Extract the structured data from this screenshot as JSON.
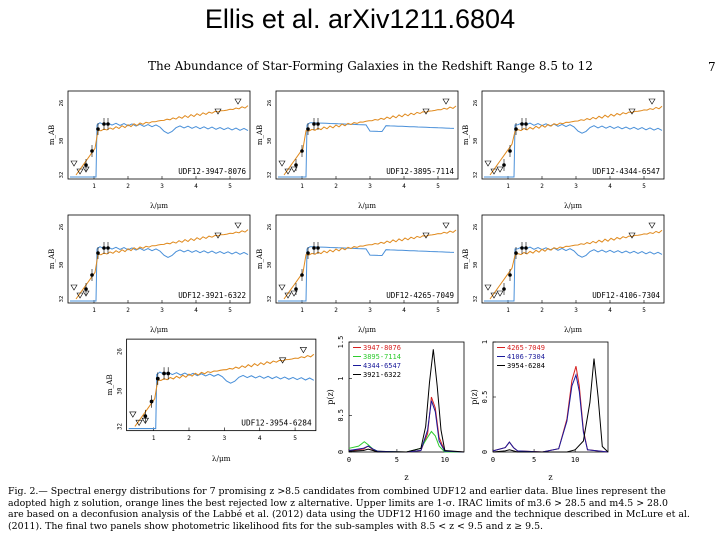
{
  "slide_title": "Ellis et al. arXiv1211.6804",
  "paper_title": "The Abundance of Star-Forming Galaxies in the Redshift Range 8.5 to 12",
  "page_number": "7",
  "colors": {
    "blue_solution": "#4a90d9",
    "orange_solution": "#e08a1e",
    "red": "#d62020",
    "green": "#2ecc2e",
    "navy": "#1a1a9a",
    "black": "#000000"
  },
  "sed_panels": [
    {
      "id": "UDF12-3947-8076",
      "ylabel": "m_AB",
      "yticks": [
        "26",
        "30",
        "32"
      ],
      "xlabel": "λ/μm",
      "xticks": [
        "1",
        "2",
        "3",
        "4",
        "5"
      ]
    },
    {
      "id": "UDF12-3895-7114",
      "ylabel": "m_AB",
      "yticks": [
        "26",
        "30",
        "32"
      ],
      "xlabel": "λ/μm",
      "xticks": [
        "1",
        "2",
        "3",
        "4",
        "5"
      ]
    },
    {
      "id": "UDF12-4344-6547",
      "ylabel": "m_AB",
      "yticks": [
        "26",
        "30",
        "32"
      ],
      "xlabel": "λ/μm",
      "xticks": [
        "1",
        "2",
        "3",
        "4",
        "5"
      ]
    },
    {
      "id": "UDF12-3921-6322",
      "ylabel": "m_AB",
      "yticks": [
        "26",
        "30",
        "32"
      ],
      "xlabel": "λ/μm",
      "xticks": [
        "1",
        "2",
        "3",
        "4",
        "5"
      ]
    },
    {
      "id": "UDF12-4265-7049",
      "ylabel": "m_AB",
      "yticks": [
        "26",
        "30",
        "32"
      ],
      "xlabel": "λ/μm",
      "xticks": [
        "1",
        "2",
        "3",
        "4",
        "5"
      ]
    },
    {
      "id": "UDF12-4106-7304",
      "ylabel": "m_AB",
      "yticks": [
        "26",
        "30",
        "32"
      ],
      "xlabel": "λ/μm",
      "xticks": [
        "1",
        "2",
        "3",
        "4",
        "5"
      ]
    },
    {
      "id": "UDF12-3954-6284",
      "ylabel": "m_AB",
      "yticks": [
        "26",
        "30",
        "32"
      ],
      "xlabel": "λ/μm",
      "xticks": [
        "1",
        "2",
        "3",
        "4",
        "5"
      ]
    }
  ],
  "chart_data": [
    {
      "type": "line",
      "panel": "pz-1",
      "xlabel": "z",
      "ylabel": "p(z)",
      "xlim": [
        0,
        12
      ],
      "ylim": [
        0,
        1.5
      ],
      "xticks": [
        "0",
        "5",
        "10"
      ],
      "yticks": [
        "0",
        "0.5",
        "1",
        "1.5"
      ],
      "legend": "top-left",
      "series": [
        {
          "name": "3947-8076",
          "color": "#d62020",
          "x": [
            0,
            1.5,
            2,
            2.5,
            3,
            6,
            7.5,
            8.2,
            8.6,
            9.0,
            9.4,
            10,
            12
          ],
          "y": [
            0.02,
            0.04,
            0.08,
            0.03,
            0.01,
            0.0,
            0.02,
            0.25,
            0.75,
            0.6,
            0.2,
            0.01,
            0.0
          ]
        },
        {
          "name": "3895-7114",
          "color": "#2ecc2e",
          "x": [
            0,
            1,
            1.6,
            2,
            2.5,
            3,
            6,
            7.5,
            8.2,
            8.6,
            9.0,
            9.4,
            10,
            12
          ],
          "y": [
            0.05,
            0.08,
            0.14,
            0.1,
            0.04,
            0.01,
            0.0,
            0.05,
            0.2,
            0.28,
            0.22,
            0.08,
            0.0,
            0.0
          ]
        },
        {
          "name": "4344-6547",
          "color": "#1a1a9a",
          "x": [
            0,
            1.5,
            2,
            2.5,
            3,
            6,
            7.5,
            8.2,
            8.6,
            9.0,
            9.4,
            10,
            12
          ],
          "y": [
            0.02,
            0.05,
            0.08,
            0.04,
            0.01,
            0.0,
            0.02,
            0.3,
            0.7,
            0.55,
            0.15,
            0.01,
            0.0
          ]
        },
        {
          "name": "3921-6322",
          "color": "#000000",
          "x": [
            0,
            1.5,
            2,
            2.5,
            3,
            6,
            7.5,
            8.0,
            8.4,
            8.8,
            9.2,
            9.6,
            10,
            12
          ],
          "y": [
            0.01,
            0.02,
            0.04,
            0.02,
            0.0,
            0.0,
            0.05,
            0.35,
            0.95,
            1.4,
            0.9,
            0.3,
            0.02,
            0.0
          ]
        }
      ]
    },
    {
      "type": "line",
      "panel": "pz-2",
      "xlabel": "z",
      "ylabel": "p(z)",
      "xlim": [
        0,
        14
      ],
      "ylim": [
        0,
        1
      ],
      "xticks": [
        "0",
        "5",
        "10"
      ],
      "yticks": [
        "0",
        "0.5",
        "1"
      ],
      "legend": "top-left",
      "series": [
        {
          "name": "4265-7049",
          "color": "#d62020",
          "x": [
            0,
            1.5,
            2,
            2.5,
            3,
            6,
            8,
            9,
            9.6,
            10.1,
            10.5,
            11,
            11.5,
            14
          ],
          "y": [
            0.01,
            0.04,
            0.09,
            0.04,
            0.01,
            0.0,
            0.03,
            0.3,
            0.65,
            0.78,
            0.6,
            0.2,
            0.02,
            0.0
          ]
        },
        {
          "name": "4106-7304",
          "color": "#1a1a9a",
          "x": [
            0,
            1.5,
            2,
            2.5,
            3,
            6,
            8,
            9,
            9.6,
            10.1,
            10.5,
            11,
            11.5,
            14
          ],
          "y": [
            0.01,
            0.04,
            0.09,
            0.04,
            0.01,
            0.0,
            0.03,
            0.28,
            0.6,
            0.7,
            0.55,
            0.18,
            0.02,
            0.0
          ]
        },
        {
          "name": "3954-6284",
          "color": "#000000",
          "x": [
            0,
            1.5,
            2,
            2.5,
            3,
            6,
            9,
            10,
            11,
            11.8,
            12.3,
            12.8,
            13.3,
            14
          ],
          "y": [
            0.0,
            0.01,
            0.02,
            0.01,
            0.0,
            0.0,
            0.0,
            0.02,
            0.1,
            0.45,
            0.85,
            0.5,
            0.05,
            0.0
          ]
        }
      ]
    }
  ],
  "caption": {
    "line1": "Fig. 2.— Spectral energy distributions for 7 promising z >8.5 candidates from combined UDF12 and earlier data. Blue lines represent the",
    "line2": "adopted high z solution, orange lines the best rejected low z alternative. Upper limits are 1-σ. IRAC limits of m3.6 > 28.5 and m4.5 > 28.0",
    "line3": "are based on a deconfusion analysis of the Labbé et al. (2012) data using the UDF12 H160 image and the technique described in McLure et al.",
    "line4": "(2011). The final two panels show photometric likelihood fits for the sub-samples with 8.5 < z < 9.5 and z ≥ 9.5."
  }
}
